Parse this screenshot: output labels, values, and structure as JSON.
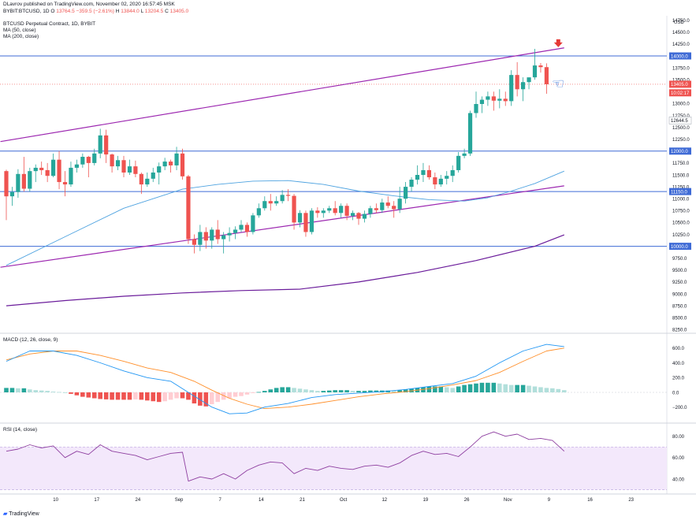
{
  "header": {
    "publisher": "DLavrov published on TradingView.com, November 02, 2020 16:57:45 MSK",
    "symbol_line": {
      "symbol": "BYBIT:BTCUSD, 1D",
      "o_label": "O",
      "o": "13764.5",
      "change": "−359.5 (−2.61%)",
      "h_label": "H",
      "h": "13844.0",
      "l_label": "L",
      "l": "13204.5",
      "c_label": "C",
      "c": "13405.0"
    },
    "title": "BTCUSD Perpetual Contract, 1D, BYBIT",
    "ma50_label": "MA (50, close)",
    "ma200_label": "MA (200, close)"
  },
  "footer": {
    "brand": "TradingView"
  },
  "colors": {
    "bull": "#26a69a",
    "bear": "#ef5350",
    "ma50": "#4fa3e0",
    "ma200": "#6a1b9a",
    "channel": "#9c27b0",
    "hline": "#3f6bd6",
    "macd": "#2196f3",
    "signal": "#ff8f2a",
    "rsi": "#8e3fa0",
    "rsi_band": "#f3e8fb"
  },
  "chart_data": [
    {
      "type": "candlestick",
      "title": "BTCUSD Perpetual Contract, 1D, BYBIT",
      "currency": "USD",
      "x_ticks": [
        "10",
        "17",
        "24",
        "Sep",
        "7",
        "14",
        "21",
        "Oct",
        "12",
        "19",
        "26",
        "Nov",
        "9",
        "16",
        "23"
      ],
      "y_ticks": [
        "14750.0",
        "14500.0",
        "14250.0",
        "14000.0",
        "13750.0",
        "13500.0",
        "13250.0",
        "13000.0",
        "12750.0",
        "12500.0",
        "12250.0",
        "12000.0",
        "11750.0",
        "11500.0",
        "11250.0",
        "11000.0",
        "10750.0",
        "10500.0",
        "10250.0",
        "10000.0",
        "9750.0",
        "9500.0",
        "9250.0",
        "9000.0",
        "8750.0",
        "8500.0",
        "8250.0"
      ],
      "ylim": [
        8150,
        14800
      ],
      "price_labels": [
        {
          "value": "14000.0",
          "kind": "line"
        },
        {
          "value": "13405.0",
          "kind": "last"
        },
        {
          "value": "10:02:17",
          "kind": "countdown"
        },
        {
          "value": "12644.5",
          "kind": "ghost"
        },
        {
          "value": "12000.0",
          "kind": "line"
        },
        {
          "value": "11150.0",
          "kind": "line"
        },
        {
          "value": "10000.0",
          "kind": "line"
        }
      ],
      "horizontal_levels": [
        14000,
        12000,
        11150,
        10000
      ],
      "channel": {
        "upper": [
          [
            -1,
            12200
          ],
          [
            95,
            14170
          ]
        ],
        "lower": [
          [
            -1,
            9560
          ],
          [
            95,
            11270
          ]
        ]
      },
      "candles": [
        [
          11580,
          11610,
          10550,
          11050
        ],
        [
          11050,
          11250,
          10850,
          11140
        ],
        [
          11140,
          11620,
          11020,
          11520
        ],
        [
          11520,
          11880,
          11150,
          11210
        ],
        [
          11210,
          11650,
          11150,
          11580
        ],
        [
          11580,
          11720,
          11350,
          11650
        ],
        [
          11650,
          11780,
          11500,
          11600
        ],
        [
          11600,
          11750,
          11350,
          11480
        ],
        [
          11480,
          11950,
          11450,
          11820
        ],
        [
          11820,
          12000,
          11200,
          11350
        ],
        [
          11350,
          11580,
          11050,
          11300
        ],
        [
          11300,
          11780,
          11250,
          11650
        ],
        [
          11650,
          11820,
          11550,
          11720
        ],
        [
          11720,
          11950,
          11650,
          11880
        ],
        [
          11880,
          11900,
          11450,
          11750
        ],
        [
          11750,
          12050,
          11700,
          11950
        ],
        [
          11950,
          12470,
          11850,
          12330
        ],
        [
          12330,
          12450,
          11750,
          11930
        ],
        [
          11930,
          11950,
          11550,
          11680
        ],
        [
          11680,
          11900,
          11600,
          11810
        ],
        [
          11810,
          11900,
          11450,
          11550
        ],
        [
          11550,
          11820,
          11500,
          11680
        ],
        [
          11680,
          11800,
          11450,
          11520
        ],
        [
          11520,
          11550,
          11100,
          11300
        ],
        [
          11300,
          11550,
          11250,
          11420
        ],
        [
          11420,
          11650,
          11350,
          11550
        ],
        [
          11550,
          11760,
          11300,
          11680
        ],
        [
          11680,
          11860,
          11600,
          11780
        ],
        [
          11780,
          11820,
          11550,
          11700
        ],
        [
          11700,
          12090,
          11600,
          11950
        ],
        [
          11950,
          12050,
          11400,
          11470
        ],
        [
          11470,
          11500,
          10050,
          10150
        ],
        [
          10150,
          10250,
          9850,
          10030
        ],
        [
          10030,
          10450,
          9900,
          10300
        ],
        [
          10300,
          10400,
          9950,
          10120
        ],
        [
          10120,
          10400,
          9950,
          10350
        ],
        [
          10350,
          10550,
          10050,
          10150
        ],
        [
          10150,
          10300,
          9850,
          10230
        ],
        [
          10230,
          10400,
          10100,
          10280
        ],
        [
          10280,
          10420,
          10150,
          10350
        ],
        [
          10350,
          10550,
          10300,
          10450
        ],
        [
          10450,
          10500,
          10200,
          10300
        ],
        [
          10300,
          10700,
          10250,
          10650
        ],
        [
          10650,
          10900,
          10600,
          10800
        ],
        [
          10800,
          11050,
          10750,
          10950
        ],
        [
          10950,
          11100,
          10750,
          10900
        ],
        [
          10900,
          11050,
          10850,
          10950
        ],
        [
          10950,
          11180,
          10900,
          11080
        ],
        [
          11080,
          11200,
          10950,
          11060
        ],
        [
          11060,
          11100,
          10350,
          10500
        ],
        [
          10500,
          10760,
          10400,
          10700
        ],
        [
          10700,
          10750,
          10200,
          10300
        ],
        [
          10300,
          10800,
          10250,
          10750
        ],
        [
          10750,
          10820,
          10600,
          10700
        ],
        [
          10700,
          10800,
          10600,
          10750
        ],
        [
          10750,
          10850,
          10700,
          10800
        ],
        [
          10800,
          10950,
          10650,
          10700
        ],
        [
          10700,
          10900,
          10600,
          10850
        ],
        [
          10850,
          10900,
          10550,
          10640
        ],
        [
          10640,
          10750,
          10550,
          10700
        ],
        [
          10700,
          10720,
          10450,
          10580
        ],
        [
          10580,
          10750,
          10500,
          10680
        ],
        [
          10680,
          10850,
          10600,
          10800
        ],
        [
          10800,
          10900,
          10700,
          10760
        ],
        [
          10760,
          11000,
          10700,
          10920
        ],
        [
          10920,
          11050,
          10800,
          10850
        ],
        [
          10850,
          10950,
          10600,
          10780
        ],
        [
          10780,
          11250,
          10700,
          11000
        ],
        [
          11000,
          11350,
          10900,
          11250
        ],
        [
          11250,
          11450,
          11150,
          11400
        ],
        [
          11400,
          11700,
          11300,
          11500
        ],
        [
          11500,
          11750,
          11350,
          11600
        ],
        [
          11600,
          11700,
          11400,
          11450
        ],
        [
          11450,
          11550,
          11200,
          11300
        ],
        [
          11300,
          11500,
          11250,
          11420
        ],
        [
          11420,
          11580,
          11300,
          11480
        ],
        [
          11480,
          11700,
          11350,
          11600
        ],
        [
          11600,
          11980,
          11550,
          11900
        ],
        [
          11900,
          12050,
          11850,
          11950
        ],
        [
          11950,
          12850,
          11900,
          12800
        ],
        [
          12800,
          13250,
          12700,
          12990
        ],
        [
          12990,
          13150,
          12800,
          13080
        ],
        [
          13080,
          13250,
          12950,
          13150
        ],
        [
          13150,
          13250,
          12850,
          13060
        ],
        [
          13060,
          13300,
          12900,
          13100
        ],
        [
          13100,
          13250,
          12950,
          13050
        ],
        [
          13050,
          13700,
          12950,
          13600
        ],
        [
          13600,
          13870,
          13150,
          13300
        ],
        [
          13300,
          13550,
          13050,
          13450
        ],
        [
          13450,
          13500,
          13300,
          13550
        ],
        [
          13550,
          14150,
          13500,
          13800
        ],
        [
          13800,
          13850,
          13650,
          13764.5
        ],
        [
          13764.5,
          13844,
          13204.5,
          13405
        ]
      ],
      "ma50": [
        [
          0,
          9600
        ],
        [
          10,
          10200
        ],
        [
          20,
          10800
        ],
        [
          30,
          11200
        ],
        [
          36,
          11300
        ],
        [
          42,
          11370
        ],
        [
          48,
          11380
        ],
        [
          54,
          11300
        ],
        [
          60,
          11160
        ],
        [
          66,
          11060
        ],
        [
          72,
          10980
        ],
        [
          78,
          10950
        ],
        [
          82,
          11020
        ],
        [
          86,
          11160
        ],
        [
          90,
          11320
        ],
        [
          95,
          11580
        ]
      ],
      "ma200": [
        [
          0,
          8750
        ],
        [
          10,
          8860
        ],
        [
          20,
          8950
        ],
        [
          30,
          9020
        ],
        [
          40,
          9070
        ],
        [
          50,
          9100
        ],
        [
          60,
          9250
        ],
        [
          70,
          9450
        ],
        [
          80,
          9700
        ],
        [
          90,
          10000
        ],
        [
          95,
          10240
        ]
      ],
      "signal_marker": {
        "index": 94,
        "value": 14250,
        "kind": "down-arrow"
      }
    },
    {
      "type": "histogram-line",
      "title": "MACD (12, 26, close, 9)",
      "y_ticks": [
        "600.0",
        "400.0",
        "200.0",
        "0.0",
        "−200.0"
      ],
      "ylim": [
        -300,
        700
      ],
      "macd": [
        [
          0,
          420
        ],
        [
          4,
          560
        ],
        [
          8,
          560
        ],
        [
          12,
          500
        ],
        [
          16,
          400
        ],
        [
          20,
          290
        ],
        [
          24,
          200
        ],
        [
          28,
          150
        ],
        [
          32,
          -50
        ],
        [
          35,
          -200
        ],
        [
          38,
          -290
        ],
        [
          41,
          -280
        ],
        [
          44,
          -200
        ],
        [
          48,
          -150
        ],
        [
          52,
          -70
        ],
        [
          56,
          -30
        ],
        [
          60,
          -10
        ],
        [
          64,
          10
        ],
        [
          68,
          40
        ],
        [
          72,
          80
        ],
        [
          76,
          120
        ],
        [
          80,
          220
        ],
        [
          84,
          400
        ],
        [
          88,
          560
        ],
        [
          92,
          650
        ],
        [
          95,
          620
        ]
      ],
      "signal": [
        [
          0,
          440
        ],
        [
          4,
          520
        ],
        [
          8,
          560
        ],
        [
          12,
          560
        ],
        [
          16,
          500
        ],
        [
          20,
          420
        ],
        [
          24,
          330
        ],
        [
          28,
          270
        ],
        [
          32,
          150
        ],
        [
          35,
          30
        ],
        [
          38,
          -80
        ],
        [
          41,
          -160
        ],
        [
          44,
          -220
        ],
        [
          48,
          -200
        ],
        [
          52,
          -160
        ],
        [
          56,
          -110
        ],
        [
          60,
          -60
        ],
        [
          64,
          -20
        ],
        [
          68,
          10
        ],
        [
          72,
          50
        ],
        [
          76,
          100
        ],
        [
          80,
          160
        ],
        [
          84,
          270
        ],
        [
          88,
          420
        ],
        [
          92,
          560
        ],
        [
          95,
          600
        ]
      ],
      "hist": [
        60,
        60,
        55,
        55,
        40,
        30,
        25,
        20,
        10,
        5,
        0,
        -20,
        -40,
        -60,
        -70,
        -80,
        -90,
        -95,
        -100,
        -100,
        -100,
        -100,
        -95,
        -100,
        -110,
        -120,
        -130,
        -120,
        -100,
        -80,
        -80,
        -100,
        -150,
        -180,
        -190,
        -160,
        -130,
        -100,
        -80,
        -60,
        -50,
        -30,
        -10,
        5,
        20,
        40,
        60,
        70,
        70,
        60,
        50,
        40,
        30,
        20,
        20,
        25,
        30,
        30,
        30,
        20,
        20,
        20,
        25,
        25,
        25,
        25,
        20,
        30,
        40,
        50,
        60,
        70,
        80,
        80,
        80,
        70,
        60,
        80,
        100,
        110,
        120,
        130,
        130,
        130,
        120,
        110,
        100,
        100,
        100,
        90,
        80,
        70,
        60,
        55,
        45,
        30
      ]
    },
    {
      "type": "line",
      "title": "RSI (14, close)",
      "y_ticks": [
        "80.00",
        "60.00",
        "40.00"
      ],
      "ylim": [
        28,
        88
      ],
      "band": [
        30,
        70
      ],
      "rsi": [
        [
          0,
          66
        ],
        [
          2,
          68
        ],
        [
          4,
          72
        ],
        [
          6,
          69
        ],
        [
          8,
          71
        ],
        [
          10,
          60
        ],
        [
          12,
          66
        ],
        [
          14,
          63
        ],
        [
          16,
          72
        ],
        [
          18,
          66
        ],
        [
          20,
          64
        ],
        [
          22,
          62
        ],
        [
          24,
          58
        ],
        [
          26,
          61
        ],
        [
          28,
          64
        ],
        [
          30,
          65
        ],
        [
          31,
          38
        ],
        [
          33,
          42
        ],
        [
          35,
          40
        ],
        [
          37,
          45
        ],
        [
          39,
          40
        ],
        [
          41,
          48
        ],
        [
          43,
          53
        ],
        [
          45,
          56
        ],
        [
          47,
          55
        ],
        [
          49,
          45
        ],
        [
          51,
          50
        ],
        [
          53,
          48
        ],
        [
          55,
          52
        ],
        [
          57,
          50
        ],
        [
          59,
          49
        ],
        [
          61,
          52
        ],
        [
          63,
          53
        ],
        [
          65,
          51
        ],
        [
          67,
          55
        ],
        [
          69,
          62
        ],
        [
          71,
          66
        ],
        [
          73,
          63
        ],
        [
          75,
          64
        ],
        [
          77,
          61
        ],
        [
          79,
          70
        ],
        [
          81,
          80
        ],
        [
          83,
          84
        ],
        [
          85,
          80
        ],
        [
          87,
          82
        ],
        [
          89,
          77
        ],
        [
          91,
          78
        ],
        [
          93,
          76
        ],
        [
          95,
          66
        ]
      ]
    }
  ]
}
